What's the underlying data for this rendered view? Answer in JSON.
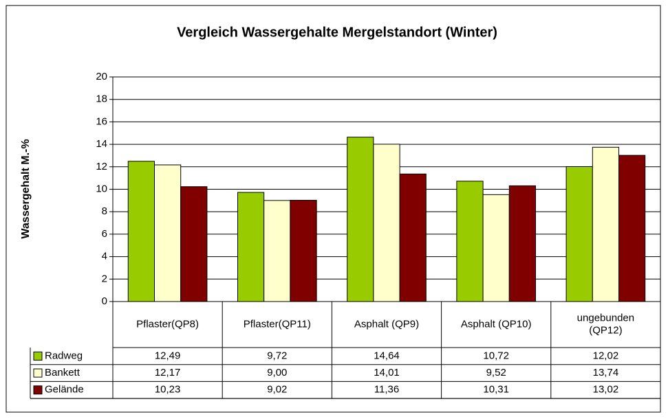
{
  "chart_data": {
    "type": "bar",
    "title": "Vergleich Wassergehalte Mergelstandort (Winter)",
    "y_label": "Wassergehalt M.-%",
    "categories": [
      "Pflaster(QP8)",
      "Pflaster(QP11)",
      "Asphalt (QP9)",
      "Asphalt (QP10)",
      "ungebunden (QP12)"
    ],
    "series": [
      {
        "name": "Radweg",
        "color": "#99cc00",
        "values": [
          12.49,
          9.72,
          14.64,
          10.72,
          12.02
        ],
        "value_labels": [
          "12,49",
          "9,72",
          "14,64",
          "10,72",
          "12,02"
        ]
      },
      {
        "name": "Bankett",
        "color": "#ffffcc",
        "values": [
          12.17,
          9.0,
          14.01,
          9.52,
          13.74
        ],
        "value_labels": [
          "12,17",
          "9,00",
          "14,01",
          "9,52",
          "13,74"
        ]
      },
      {
        "name": "Gelände",
        "color": "#800000",
        "values": [
          10.23,
          9.02,
          11.36,
          10.31,
          13.02
        ],
        "value_labels": [
          "10,23",
          "9,02",
          "11,36",
          "10,31",
          "13,02"
        ]
      }
    ],
    "ylim": [
      0,
      20
    ],
    "yticks": [
      0,
      2,
      4,
      6,
      8,
      10,
      12,
      14,
      16,
      18,
      20
    ],
    "grid": true
  }
}
